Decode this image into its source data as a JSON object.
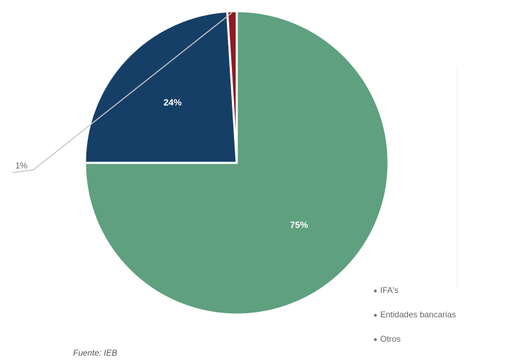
{
  "chart_data": {
    "type": "pie",
    "title": "",
    "slices": [
      {
        "label": "IFA's",
        "value": 75,
        "display": "75%",
        "color": "#5fa07e"
      },
      {
        "label": "Entidades bancarias",
        "value": 24,
        "display": "24%",
        "color": "#153f66"
      },
      {
        "label": "Otros",
        "value": 1,
        "display": "1%",
        "color": "#8e1a24"
      }
    ],
    "legend": {
      "placement": "bottom-right",
      "items": [
        "IFA's",
        "Entidades bancarias",
        "Otros"
      ]
    }
  },
  "source": "Fuente: IEB"
}
